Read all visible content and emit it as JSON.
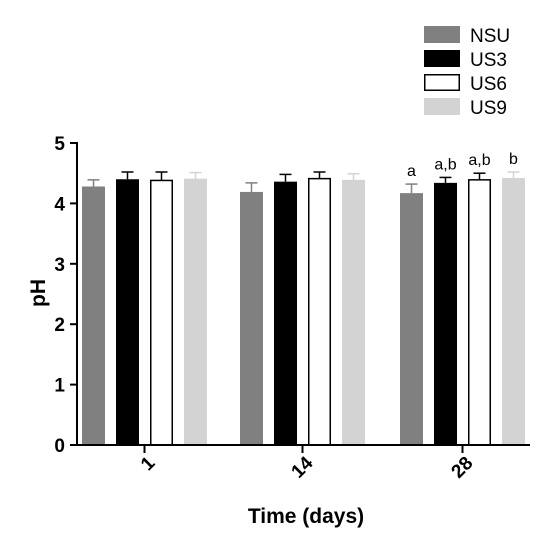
{
  "chart_data": {
    "type": "bar",
    "title": "",
    "xlabel": "Time (days)",
    "ylabel": "pH",
    "categories": [
      "1",
      "14",
      "28"
    ],
    "ylim": [
      0,
      5
    ],
    "yticks": [
      0,
      1,
      2,
      3,
      4,
      5
    ],
    "grid": false,
    "legend_position": "top-right",
    "series": [
      {
        "name": "NSU",
        "color": "#808080",
        "fill": "#808080",
        "stroke": "#808080",
        "values": [
          4.28,
          4.19,
          4.17
        ],
        "errors": [
          0.11,
          0.15,
          0.15
        ]
      },
      {
        "name": "US3",
        "color": "#000000",
        "fill": "#000000",
        "stroke": "#000000",
        "values": [
          4.4,
          4.36,
          4.34
        ],
        "errors": [
          0.12,
          0.12,
          0.09
        ]
      },
      {
        "name": "US6",
        "color": "#ffffff",
        "fill": "#ffffff",
        "stroke": "#000000",
        "values": [
          4.38,
          4.41,
          4.39
        ],
        "errors": [
          0.14,
          0.11,
          0.11
        ]
      },
      {
        "name": "US9",
        "color": "#d3d3d3",
        "fill": "#d3d3d3",
        "stroke": "#d3d3d3",
        "values": [
          4.41,
          4.39,
          4.42
        ],
        "errors": [
          0.1,
          0.1,
          0.1
        ]
      }
    ],
    "annotations": [
      {
        "category": "28",
        "series": "NSU",
        "text": "a"
      },
      {
        "category": "28",
        "series": "US3",
        "text": "a,b"
      },
      {
        "category": "28",
        "series": "US6",
        "text": "a,b"
      },
      {
        "category": "28",
        "series": "US9",
        "text": "b"
      }
    ]
  }
}
